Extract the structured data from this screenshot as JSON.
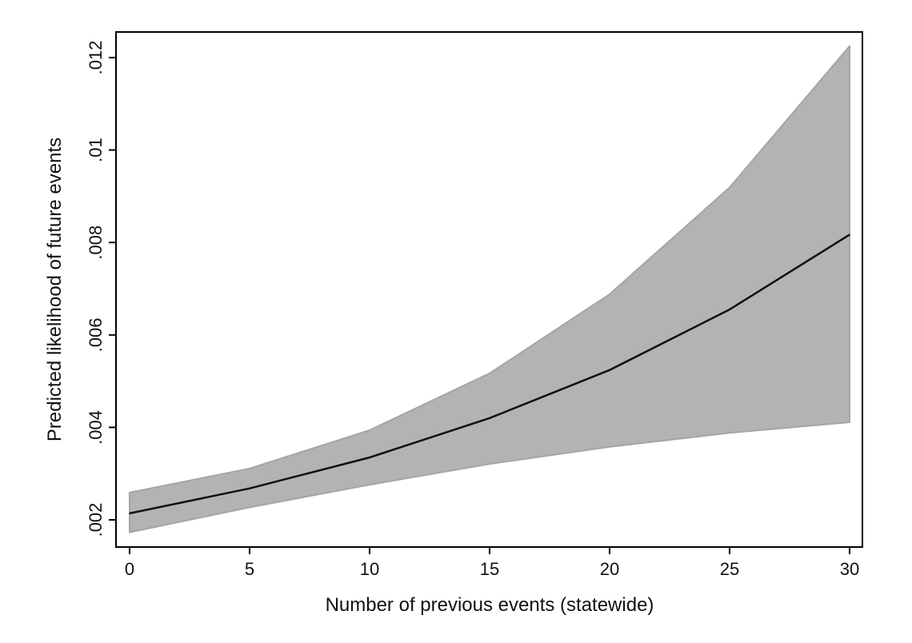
{
  "chart_data": {
    "type": "line",
    "xlabel": "Number of previous events (statewide)",
    "ylabel": "Predicted likelihood of future events",
    "xlim": [
      0,
      30
    ],
    "ylim": [
      0.002,
      0.012
    ],
    "x_ticks": [
      0,
      5,
      10,
      15,
      20,
      25,
      30
    ],
    "x_tick_labels": [
      "0",
      "5",
      "10",
      "15",
      "20",
      "25",
      "30"
    ],
    "y_ticks": [
      0.002,
      0.004,
      0.006,
      0.008,
      0.01,
      0.012
    ],
    "y_tick_labels": [
      ".002",
      ".004",
      ".006",
      ".008",
      ".01",
      ".012"
    ],
    "grid": false,
    "legend": "none",
    "x": [
      0,
      5,
      10,
      15,
      20,
      25,
      30
    ],
    "series": [
      {
        "values": [
          0.00214,
          0.00268,
          0.00335,
          0.0042,
          0.00524,
          0.00655,
          0.00817
        ],
        "color": "#111111"
      }
    ],
    "confidence_band": {
      "lower": [
        0.00173,
        0.00227,
        0.00276,
        0.00321,
        0.00358,
        0.00388,
        0.00411
      ],
      "upper": [
        0.00259,
        0.00311,
        0.00394,
        0.00517,
        0.00688,
        0.00919,
        0.01225
      ],
      "fill_color": "#b3b3b3",
      "edge_color": "#a5a5a5"
    }
  }
}
